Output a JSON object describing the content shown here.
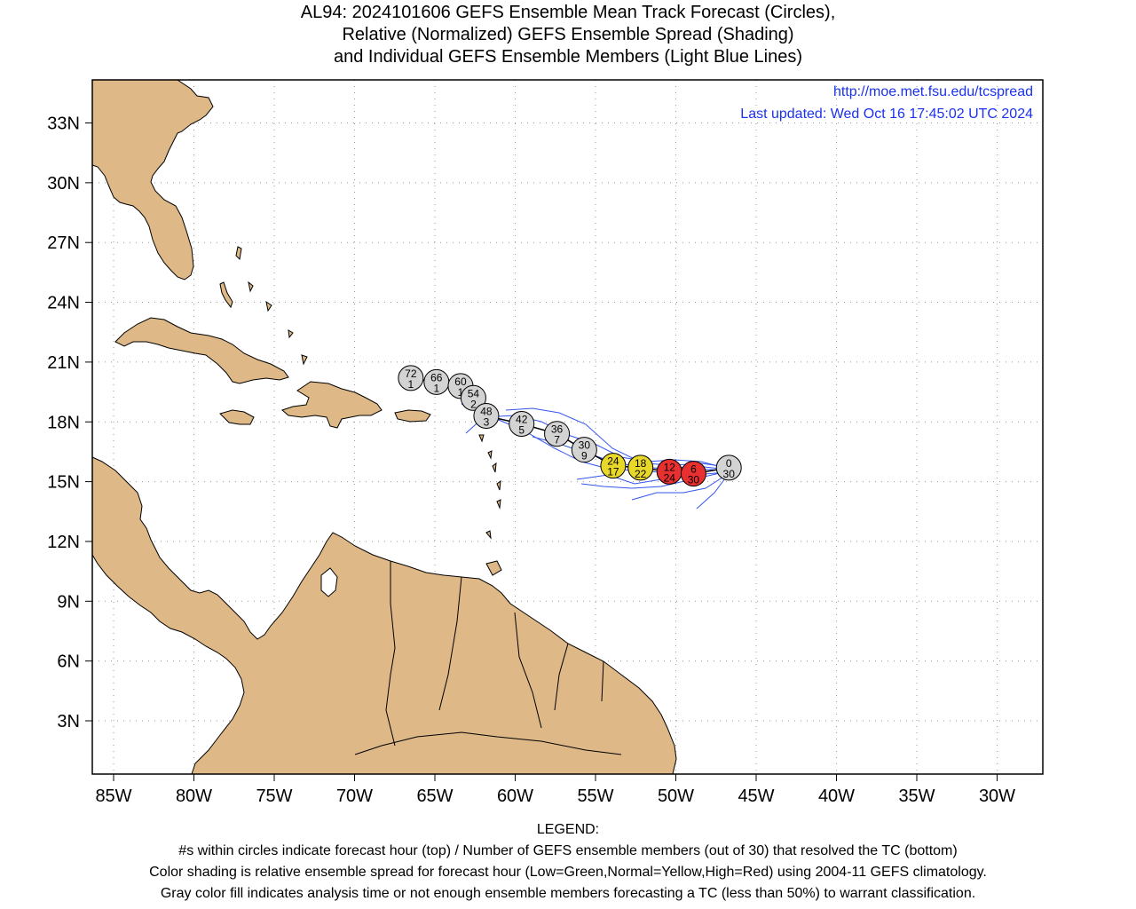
{
  "title": {
    "line1": "AL94: 2024101606 GEFS Ensemble Mean Track Forecast (Circles),",
    "line2": "Relative (Normalized) GEFS Ensemble Spread (Shading)",
    "line3": "and Individual GEFS Ensemble Members (Light Blue Lines)"
  },
  "map": {
    "url": "http://moe.met.fsu.edu/tcspread",
    "updated": "Last updated: Wed Oct 16 17:45:02 UTC 2024",
    "lat_labels": [
      "33N",
      "30N",
      "27N",
      "24N",
      "21N",
      "18N",
      "15N",
      "12N",
      "9N",
      "6N",
      "3N"
    ],
    "lon_labels": [
      "85W",
      "80W",
      "75W",
      "70W",
      "65W",
      "60W",
      "55W",
      "50W",
      "45W",
      "40W",
      "35W",
      "30W"
    ],
    "colors": {
      "land": "#deb887",
      "ocean": "#ffffff",
      "member_track": "#3355ee",
      "gray": "#d3d3d3",
      "yellow": "#e8d82a",
      "red": "#e83030",
      "link": "#1a32ee"
    }
  },
  "forecast_points": [
    {
      "hour": "0",
      "members": "30",
      "lat": 15.7,
      "lon": -46.7,
      "color": "gray"
    },
    {
      "hour": "6",
      "members": "30",
      "lat": 15.4,
      "lon": -48.9,
      "color": "red"
    },
    {
      "hour": "12",
      "members": "24",
      "lat": 15.5,
      "lon": -50.4,
      "color": "red"
    },
    {
      "hour": "18",
      "members": "22",
      "lat": 15.7,
      "lon": -52.2,
      "color": "yellow"
    },
    {
      "hour": "24",
      "members": "17",
      "lat": 15.8,
      "lon": -53.9,
      "color": "yellow"
    },
    {
      "hour": "30",
      "members": "9",
      "lat": 16.6,
      "lon": -55.7,
      "color": "gray"
    },
    {
      "hour": "36",
      "members": "7",
      "lat": 17.4,
      "lon": -57.4,
      "color": "gray"
    },
    {
      "hour": "42",
      "members": "5",
      "lat": 17.9,
      "lon": -59.6,
      "color": "gray"
    },
    {
      "hour": "48",
      "members": "3",
      "lat": 18.3,
      "lon": -61.8,
      "color": "gray"
    },
    {
      "hour": "54",
      "members": "2",
      "lat": 19.2,
      "lon": -62.6,
      "color": "gray"
    },
    {
      "hour": "60",
      "members": "1",
      "lat": 19.8,
      "lon": -63.4,
      "color": "gray"
    },
    {
      "hour": "66",
      "members": "1",
      "lat": 20.0,
      "lon": -64.9,
      "color": "gray"
    },
    {
      "hour": "72",
      "members": "1",
      "lat": 20.2,
      "lon": -66.5,
      "color": "gray"
    }
  ],
  "legend": {
    "heading": "LEGEND:",
    "line1": "#s within circles indicate forecast hour (top) / Number of GEFS ensemble members (out of 30) that resolved the TC (bottom)",
    "line2": "Color shading is relative ensemble spread for forecast hour (Low=Green,Normal=Yellow,High=Red) using 2004-11 GEFS climatology.",
    "line3": "Gray color fill indicates analysis time or not enough ensemble members forecasting a TC (less than 50%) to warrant classification."
  }
}
